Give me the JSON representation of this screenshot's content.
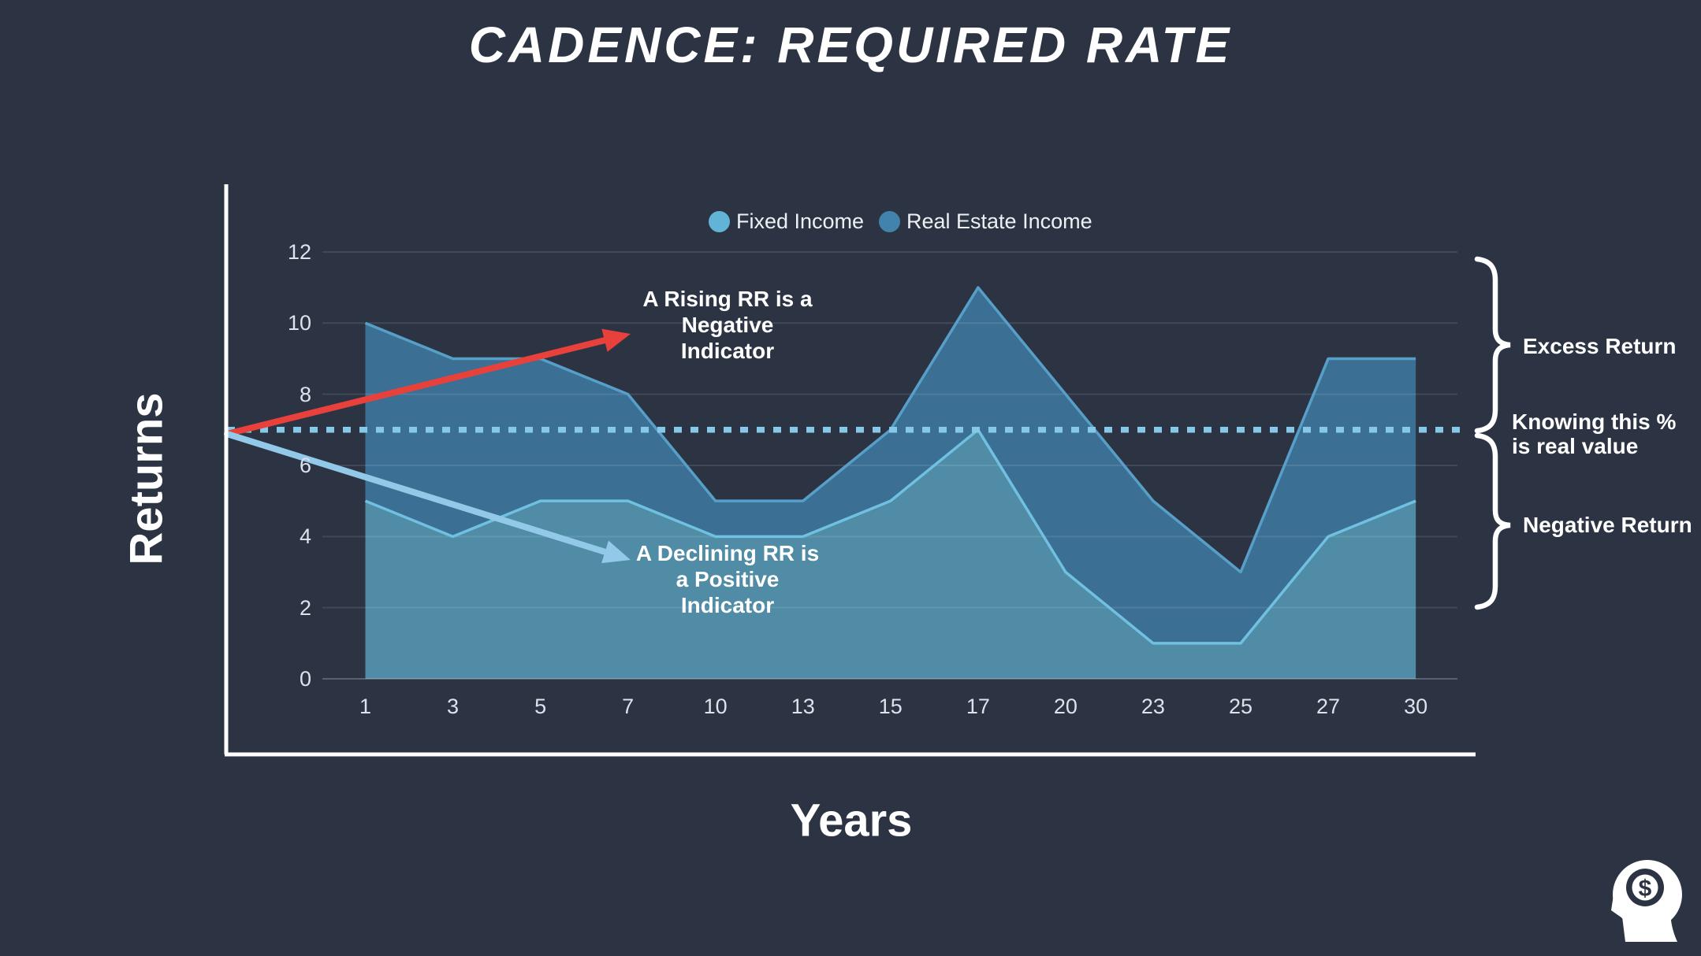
{
  "title": "CADENCE: REQUIRED RATE",
  "y_axis_label": "Returns",
  "x_axis_label": "Years",
  "legend": [
    {
      "label": "Fixed Income",
      "color": "#62b4d6"
    },
    {
      "label": "Real Estate Income",
      "color": "#4183aa"
    }
  ],
  "chart_data": {
    "type": "area",
    "categories": [
      "1",
      "3",
      "5",
      "7",
      "10",
      "13",
      "15",
      "17",
      "20",
      "23",
      "25",
      "27",
      "30"
    ],
    "series": [
      {
        "name": "Real Estate Income",
        "values": [
          10,
          9,
          9,
          8,
          5,
          5,
          7,
          11,
          8,
          5,
          3,
          9,
          9
        ],
        "fill": "#3b6f94",
        "stroke": "#579fc8"
      },
      {
        "name": "Fixed Income",
        "values": [
          5,
          4,
          5,
          5,
          4,
          4,
          5,
          7,
          3,
          1,
          1,
          4,
          5
        ],
        "fill": "#508ca6",
        "stroke": "#70c1e1"
      }
    ],
    "y_ticks": [
      0,
      2,
      4,
      6,
      8,
      10,
      12
    ],
    "ylim": [
      0,
      12
    ],
    "xlabel": "Years",
    "ylabel": "Returns",
    "grid": true,
    "legend_position": "top",
    "reference_line": {
      "value": 7,
      "style": "dotted",
      "color": "#85c8e8"
    }
  },
  "annotations": {
    "rising": {
      "lines": [
        "A Rising RR is a",
        "Negative",
        "Indicator"
      ],
      "arrow_color": "#e8413b"
    },
    "declining": {
      "lines": [
        "A Declining RR is",
        "a Positive",
        "Indicator"
      ],
      "arrow_color": "#92c9e8"
    }
  },
  "right_labels": {
    "excess": "Excess Return",
    "knowing_line1": "Knowing this %",
    "knowing_line2": "is real value",
    "negative": "Negative Return"
  },
  "icon": {
    "name": "money-mindset-icon",
    "symbol": "$"
  },
  "colors": {
    "background": "#2c3444",
    "axis": "#ffffff",
    "grid": "rgba(255,255,255,0.10)",
    "zero_line": "rgba(255,255,255,0.22)",
    "tick_text": "#dce3ea"
  }
}
